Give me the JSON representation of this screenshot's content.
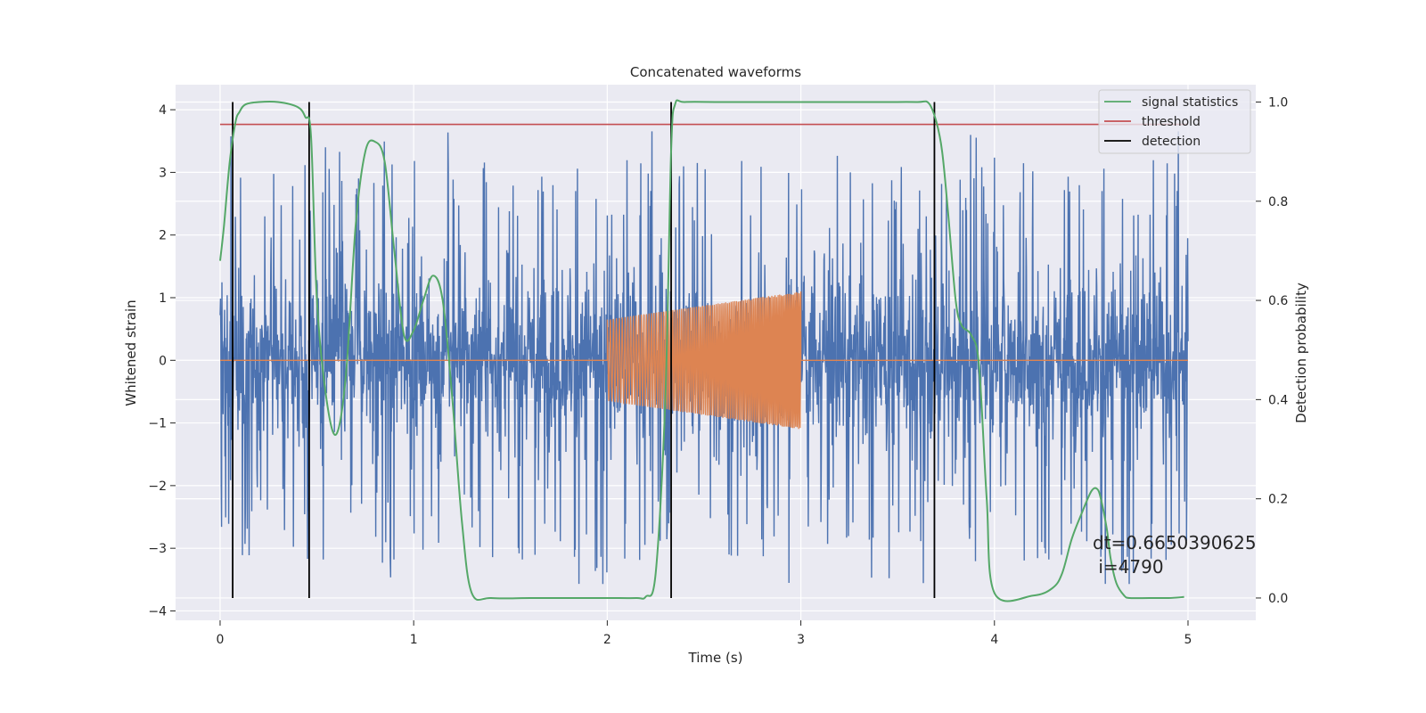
{
  "chart_data": {
    "type": "line",
    "title": "Concatenated waveforms",
    "xlabel": "Time (s)",
    "ylabel": "Whitened strain",
    "y2label": "Detection probability",
    "xlim": [
      -0.23,
      5.35
    ],
    "ylim": [
      -4.15,
      4.4
    ],
    "y2lim": [
      -0.045,
      1.035
    ],
    "xticks": [
      0,
      1,
      2,
      3,
      4,
      5
    ],
    "yticks": [
      -4,
      -3,
      -2,
      -1,
      0,
      1,
      2,
      3,
      4
    ],
    "y2ticks": [
      0.0,
      0.2,
      0.4,
      0.6,
      0.8,
      1.0
    ],
    "xtick_labels": [
      "0",
      "1",
      "2",
      "3",
      "4",
      "5"
    ],
    "ytick_labels": [
      "−4",
      "−3",
      "−2",
      "−1",
      "0",
      "1",
      "2",
      "3",
      "4"
    ],
    "y2tick_labels": [
      "0.0",
      "0.2",
      "0.4",
      "0.6",
      "0.8",
      "1.0"
    ],
    "grid": true,
    "legend_position": "top-right",
    "legend": [
      "signal statistics",
      "threshold",
      "detection"
    ],
    "colors": {
      "strain": "#4c72b0",
      "injection": "#dd8452",
      "statistics": "#55a868",
      "threshold": "#c44e52",
      "detection": "#000000",
      "axes_bg": "#eaeaf2"
    },
    "series": [
      {
        "name": "signal statistics",
        "axis": "right",
        "x": [
          0.0,
          0.02,
          0.05,
          0.08,
          0.1,
          0.13,
          0.2,
          0.3,
          0.4,
          0.44,
          0.47,
          0.5,
          0.55,
          0.6,
          0.65,
          0.7,
          0.75,
          0.8,
          0.85,
          0.9,
          0.95,
          1.0,
          1.05,
          1.1,
          1.15,
          1.2,
          1.25,
          1.3,
          1.4,
          1.6,
          1.8,
          2.0,
          2.15,
          2.2,
          2.25,
          2.3,
          2.33,
          2.35,
          2.4,
          2.6,
          3.0,
          3.4,
          3.6,
          3.66,
          3.7,
          3.73,
          3.76,
          3.8,
          3.83,
          3.88,
          3.92,
          3.96,
          4.0,
          4.2,
          4.3,
          4.35,
          4.4,
          4.45,
          4.5,
          4.53,
          4.55,
          4.58,
          4.6,
          4.63,
          4.67,
          4.7,
          4.8,
          4.9,
          4.98
        ],
        "values": [
          0.68,
          0.75,
          0.88,
          0.96,
          0.98,
          0.995,
          1.0,
          1.0,
          0.99,
          0.97,
          0.93,
          0.6,
          0.4,
          0.33,
          0.45,
          0.75,
          0.9,
          0.92,
          0.88,
          0.7,
          0.53,
          0.54,
          0.6,
          0.65,
          0.6,
          0.4,
          0.15,
          0.01,
          0.0,
          0.0,
          0.0,
          0.0,
          0.0,
          0.003,
          0.05,
          0.4,
          0.9,
          0.995,
          1.0,
          1.0,
          1.0,
          1.0,
          1.0,
          0.998,
          0.96,
          0.9,
          0.78,
          0.6,
          0.55,
          0.53,
          0.47,
          0.2,
          0.01,
          0.005,
          0.02,
          0.05,
          0.12,
          0.17,
          0.215,
          0.22,
          0.2,
          0.14,
          0.08,
          0.03,
          0.005,
          0.0,
          0.0,
          0.0,
          0.002
        ]
      },
      {
        "name": "threshold",
        "axis": "right",
        "x": [
          0.0,
          5.0
        ],
        "values": [
          0.955,
          0.955
        ]
      },
      {
        "name": "detection",
        "axis": "right",
        "x": [
          0.065,
          0.46,
          2.33,
          3.69
        ],
        "y_range": [
          0.0,
          1.0
        ]
      },
      {
        "axis": "left",
        "x_range": [
          0.0,
          5.0
        ],
        "typical_amplitude": 0.85,
        "spike_range": [
          -3.8,
          4.05
        ]
      },
      {
        "axis": "left",
        "x_range": [
          2.0,
          3.0
        ],
        "amplitude_start": 0.65,
        "amplitude_end": 1.1,
        "baseline": 0.0
      }
    ],
    "annotation": "dt=0.6650390625\n i=4790"
  }
}
